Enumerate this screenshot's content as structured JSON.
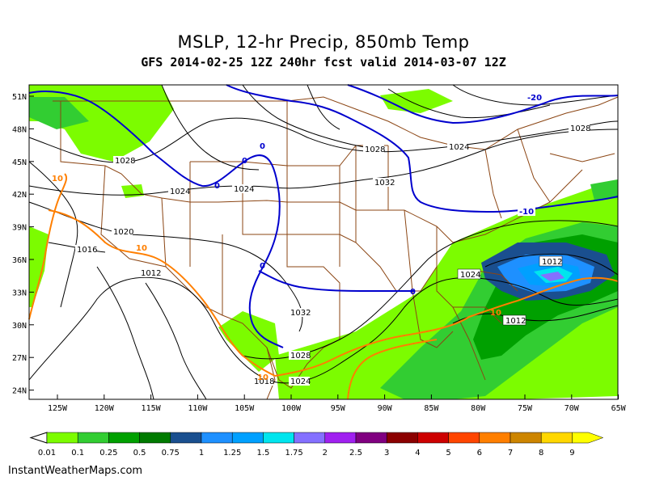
{
  "title": "MSLP, 12-hr Precip, 850mb Temp",
  "subtitle": "GFS 2014-02-25 12Z 240hr fcst valid 2014-03-07 12Z",
  "footer": "InstantWeatherMaps.com",
  "lat_labels": [
    "51N",
    "48N",
    "45N",
    "42N",
    "39N",
    "36N",
    "33N",
    "30N",
    "27N",
    "24N"
  ],
  "lon_labels": [
    "125W",
    "120W",
    "115W",
    "110W",
    "105W",
    "100W",
    "95W",
    "90W",
    "85W",
    "80W",
    "75W",
    "70W",
    "65W"
  ],
  "pressure_labels": [
    "1028",
    "1028",
    "1024",
    "1028",
    "1024",
    "1024",
    "1032",
    "1020",
    "1016",
    "1012",
    "1012",
    "1024",
    "1032",
    "1028",
    "1024",
    "1012",
    "1018"
  ],
  "temp_labels": [
    "-20",
    "-10",
    "0",
    "0",
    "0",
    "0",
    "0",
    "10",
    "10",
    "10",
    "10"
  ],
  "legend": {
    "values": [
      "0.01",
      "0.1",
      "0.25",
      "0.5",
      "0.75",
      "1",
      "1.25",
      "1.5",
      "1.75",
      "2",
      "2.5",
      "3",
      "4",
      "5",
      "6",
      "7",
      "8",
      "9"
    ],
    "colors": [
      "#7cfc00",
      "#32cd32",
      "#00a000",
      "#007a00",
      "#1a4f8f",
      "#1e90ff",
      "#00a0ff",
      "#00e5ee",
      "#8470ff",
      "#a020f0",
      "#800080",
      "#8b0000",
      "#cd0000",
      "#ff4500",
      "#ff7f00",
      "#cd8500",
      "#ffd700",
      "#ffff00"
    ]
  },
  "colors": {
    "borders": "#8b4513",
    "isobars": "#000000",
    "cold_isotherm": "#0000cd",
    "warm_isotherm": "#ff7f00",
    "precip_light": "#7cfc00",
    "precip_med": "#00a000",
    "precip_heavy": "#1e90ff"
  }
}
